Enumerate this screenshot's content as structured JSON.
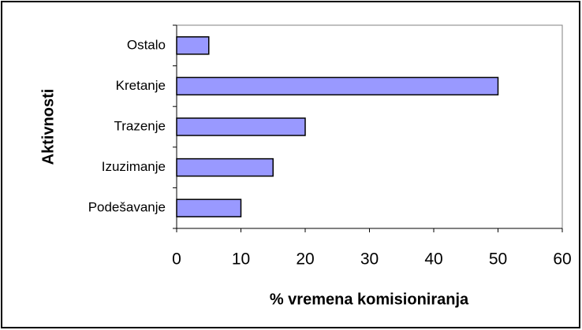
{
  "chart_data": {
    "type": "barh",
    "categories": [
      "Ostalo",
      "Kretanje",
      "Trazenje",
      "Izuzimanje",
      "Podešavanje"
    ],
    "values": [
      5,
      50,
      20,
      15,
      10
    ],
    "color": "#9999ff",
    "xlabel": "% vremena komisioniranja",
    "ylabel": "Aktivnosti",
    "xlim": [
      0,
      60
    ],
    "xticks": [
      0,
      10,
      20,
      30,
      40,
      50,
      60
    ],
    "grid": false
  }
}
